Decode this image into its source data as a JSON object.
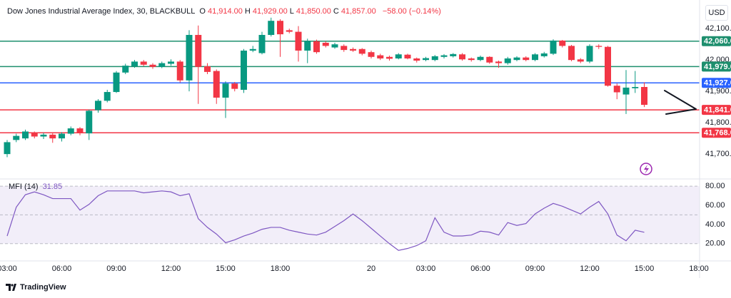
{
  "chart_data": [
    {
      "type": "candlestick",
      "title": "Dow Jones Industrial Average Index, 30, BLACKBULL",
      "currency": "USD",
      "legend": [
        {
          "key": "O",
          "text": "41,914.00"
        },
        {
          "key": "H",
          "text": "41,929.00"
        },
        {
          "key": "L",
          "text": "41,850.00"
        },
        {
          "key": "C",
          "text": "41,857.00"
        }
      ],
      "change": "−58.00 (−0.14%)",
      "categories": [
        "03:00",
        null,
        null,
        null,
        null,
        null,
        "06:00",
        null,
        null,
        null,
        null,
        null,
        "09:00",
        null,
        null,
        null,
        null,
        null,
        "12:00",
        null,
        null,
        null,
        null,
        null,
        "15:00",
        null,
        null,
        null,
        null,
        null,
        "18:00",
        null,
        null,
        null,
        null,
        null,
        null,
        null,
        null,
        null,
        "20",
        null,
        null,
        null,
        null,
        null,
        "03:00",
        null,
        null,
        null,
        null,
        null,
        "06:00",
        null,
        null,
        null,
        null,
        null,
        "09:00",
        null,
        null,
        null,
        null,
        null,
        "12:00",
        null,
        null,
        null,
        null,
        null,
        "15:00",
        null,
        null,
        null,
        null,
        null,
        "18:00"
      ],
      "open": [
        41700,
        41745,
        41750,
        41768,
        41756,
        41762,
        41750,
        41765,
        41782,
        41766,
        41840,
        41870,
        41898,
        41960,
        41980,
        41995,
        41985,
        41978,
        41988,
        41995,
        41935,
        42080,
        41980,
        41965,
        41880,
        41925,
        41905,
        42030,
        42022,
        42080,
        42125,
        42095,
        42090,
        42030,
        42060,
        42055,
        42040,
        42045,
        42035,
        42035,
        42025,
        42015,
        42010,
        42005,
        42017,
        42005,
        42000,
        42000,
        42010,
        42012,
        42018,
        42005,
        42000,
        42010,
        41995,
        41990,
        42000,
        42008,
        42000,
        42012,
        42020,
        42062,
        42045,
        42002,
        41995,
        42045,
        42042,
        41918,
        41890,
        41910,
        41914,
        null,
        null,
        null,
        null,
        null,
        null
      ],
      "high": [
        41745,
        41765,
        41778,
        41772,
        41768,
        41766,
        41770,
        41788,
        41786,
        41842,
        41875,
        41905,
        41965,
        41988,
        42000,
        42000,
        41990,
        41995,
        42002,
        42000,
        42095,
        42110,
        41990,
        41970,
        41932,
        41930,
        42035,
        42045,
        42090,
        42135,
        42130,
        42100,
        42108,
        42068,
        42065,
        42060,
        42055,
        42050,
        42040,
        42038,
        42030,
        42020,
        42014,
        42022,
        42020,
        42008,
        42010,
        42016,
        42019,
        42022,
        42022,
        42008,
        42014,
        42012,
        41998,
        42010,
        42012,
        42012,
        42022,
        42026,
        42066,
        42064,
        42048,
        42006,
        42050,
        42050,
        42045,
        41925,
        41968,
        41965,
        41929,
        null,
        null,
        null,
        null,
        null,
        null
      ],
      "low": [
        41690,
        41738,
        41745,
        41750,
        41748,
        41736,
        41740,
        41760,
        41760,
        41745,
        41832,
        41865,
        41895,
        41955,
        41975,
        41980,
        41972,
        41974,
        41982,
        41928,
        41900,
        41860,
        41955,
        41860,
        41815,
        41900,
        41895,
        42025,
        42018,
        42075,
        42010,
        42085,
        41995,
        41990,
        42020,
        42040,
        42036,
        42026,
        42026,
        42015,
        42005,
        42000,
        41998,
        42002,
        42002,
        41992,
        41996,
        41996,
        42005,
        42008,
        41998,
        41995,
        41996,
        41988,
        41975,
        41985,
        41996,
        41996,
        41996,
        42008,
        42016,
        42040,
        41996,
        41990,
        41990,
        42035,
        41915,
        41875,
        41828,
        41895,
        41850,
        null,
        null,
        null,
        null,
        null,
        null
      ],
      "close": [
        41738,
        41758,
        41772,
        41756,
        41762,
        41750,
        41765,
        41782,
        41768,
        41838,
        41870,
        41898,
        41960,
        41982,
        41995,
        41985,
        41978,
        41990,
        41995,
        41935,
        42080,
        41978,
        41962,
        41880,
        41925,
        41908,
        42030,
        42035,
        42080,
        42125,
        42082,
        42090,
        42030,
        42060,
        42025,
        42045,
        42050,
        42032,
        42030,
        42020,
        42010,
        42005,
        42004,
        42018,
        42005,
        41998,
        42006,
        42012,
        42015,
        42019,
        42002,
        42000,
        42010,
        41992,
        41990,
        42005,
        42008,
        42000,
        42018,
        42021,
        42062,
        42045,
        42000,
        41995,
        42045,
        42042,
        41918,
        41897,
        41912,
        41914,
        41857,
        null,
        null,
        null,
        null,
        null,
        null
      ],
      "up_color": "#089981",
      "down_color": "#f23645",
      "ylim": [
        41623,
        42180
      ],
      "yticks": [
        {
          "value": 42100,
          "label": "42,100.00"
        },
        {
          "value": 42000,
          "label": "42,000.00"
        },
        {
          "value": 41900,
          "label": "41,900.00"
        },
        {
          "value": 41800,
          "label": "41,800.00"
        },
        {
          "value": 41700,
          "label": "41,700.00"
        }
      ],
      "grid": false,
      "levels": [
        {
          "value": 42060,
          "label": "42,060.00",
          "color": "#1e8f6e"
        },
        {
          "value": 41979,
          "label": "41,979.00",
          "color": "#1e8f6e"
        },
        {
          "value": 41927,
          "label": "41,927.00",
          "color": "#2962ff"
        },
        {
          "value": 41841,
          "label": "41,841.00",
          "color": "#f23645"
        },
        {
          "value": 41768,
          "label": "41,768.00",
          "color": "#f23645"
        }
      ]
    },
    {
      "type": "line",
      "title": "MFI (14)",
      "series": [
        {
          "color": "#7e57c2",
          "values": [
            28,
            58,
            71,
            74,
            71,
            67,
            67,
            67,
            55,
            61,
            70,
            75,
            75,
            75,
            75,
            73,
            74,
            75,
            74,
            70,
            72,
            46,
            37,
            30,
            21,
            24,
            28,
            31,
            35,
            37,
            37,
            34,
            32,
            30,
            29,
            32,
            38,
            44,
            51,
            44,
            36,
            28,
            20,
            13,
            15,
            18,
            23,
            47,
            32,
            28,
            28,
            29,
            33,
            32,
            29,
            42,
            39,
            41,
            51,
            57,
            62,
            59,
            55,
            51,
            58,
            64,
            51,
            29,
            23,
            34,
            31.85,
            null,
            null,
            null,
            null,
            null,
            null
          ]
        }
      ],
      "bands": {
        "upper": 80,
        "middle": 50,
        "lower": 20,
        "color": "#7e57c2"
      },
      "ylim": [
        2,
        86
      ],
      "yticks": [
        {
          "value": 80,
          "label": "80.00"
        },
        {
          "value": 60,
          "label": "60.00"
        },
        {
          "value": 40,
          "label": "40.00"
        },
        {
          "value": 20,
          "label": "20.00"
        }
      ]
    }
  ],
  "branding": "TradingView"
}
